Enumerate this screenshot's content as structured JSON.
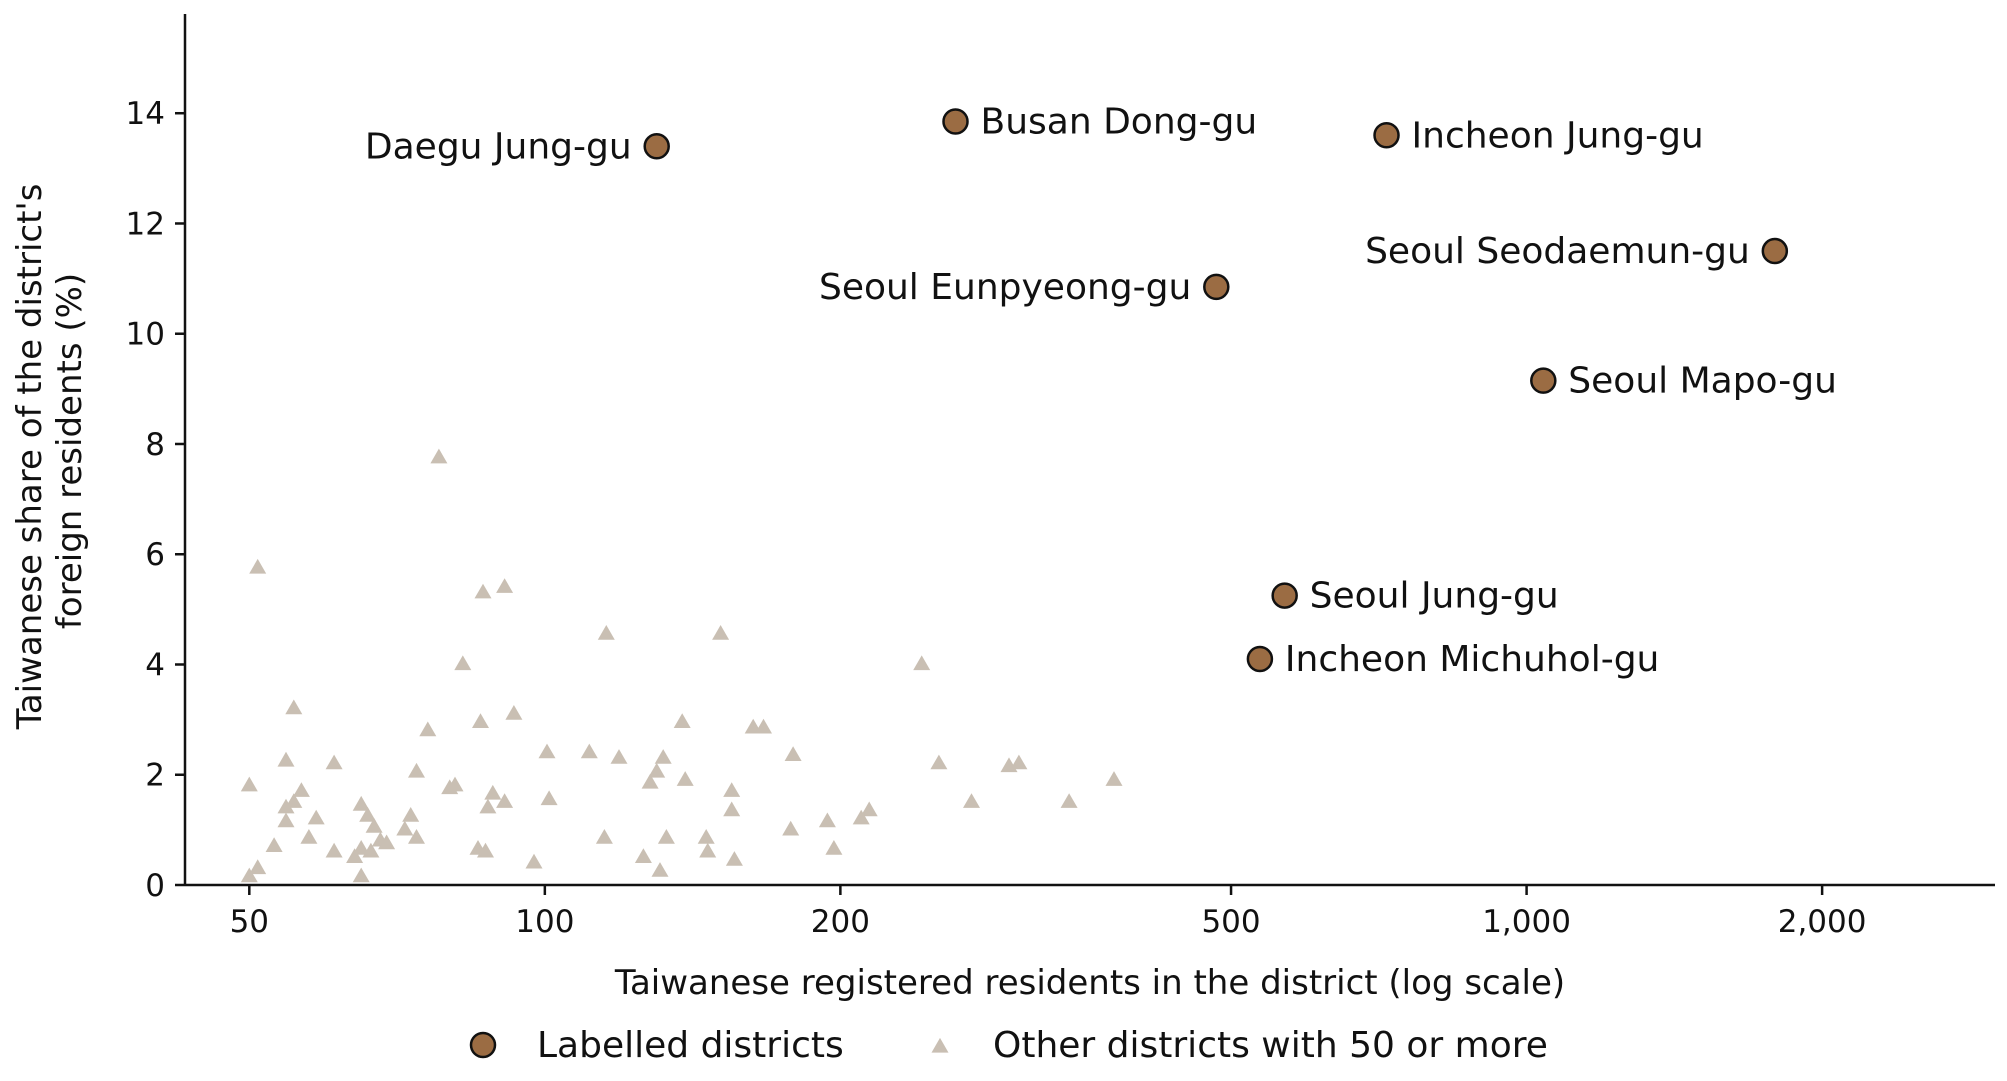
{
  "colors": {
    "labelled": "#9b6c43",
    "labelled_stroke": "#111111",
    "other": "#c9bfb3",
    "axis": "#111111"
  },
  "chart_data": {
    "type": "scatter",
    "title": "",
    "xlabel": "Taiwanese registered residents in the district (log scale)",
    "ylabel": "Taiwanese share of the district's foreign residents (%)",
    "ylabel_lines": [
      "Taiwanese share of the district's",
      "foreign residents (%)"
    ],
    "x_scale": "log",
    "xlim": [
      43,
      3000
    ],
    "ylim": [
      0,
      15.8
    ],
    "x_ticks": [
      {
        "value": 50,
        "label": "50"
      },
      {
        "value": 100,
        "label": "100"
      },
      {
        "value": 200,
        "label": "200"
      },
      {
        "value": 500,
        "label": "500"
      },
      {
        "value": 1000,
        "label": "1,000"
      },
      {
        "value": 2000,
        "label": "2,000"
      }
    ],
    "y_ticks": [
      {
        "value": 0,
        "label": "0"
      },
      {
        "value": 2,
        "label": "2"
      },
      {
        "value": 4,
        "label": "4"
      },
      {
        "value": 6,
        "label": "6"
      },
      {
        "value": 8,
        "label": "8"
      },
      {
        "value": 10,
        "label": "10"
      },
      {
        "value": 12,
        "label": "12"
      },
      {
        "value": 14,
        "label": "14"
      }
    ],
    "grid": false,
    "legend_position": "bottom-center",
    "series": [
      {
        "name": "Labelled districts",
        "marker": "circle",
        "points": [
          {
            "x": 130,
            "y": 13.4,
            "label": "Daegu Jung-gu",
            "label_side": "left"
          },
          {
            "x": 262,
            "y": 13.85,
            "label": "Busan Dong-gu",
            "label_side": "right"
          },
          {
            "x": 720,
            "y": 13.6,
            "label": "Incheon Jung-gu",
            "label_side": "right"
          },
          {
            "x": 1790,
            "y": 11.5,
            "label": "Seoul Seodaemun-gu",
            "label_side": "left"
          },
          {
            "x": 483,
            "y": 10.85,
            "label": "Seoul Eunpyeong-gu",
            "label_side": "left"
          },
          {
            "x": 1040,
            "y": 9.15,
            "label": "Seoul Mapo-gu",
            "label_side": "right"
          },
          {
            "x": 567,
            "y": 5.25,
            "label": "Seoul Jung-gu",
            "label_side": "right"
          },
          {
            "x": 535,
            "y": 4.1,
            "label": "Incheon Michuhol-gu",
            "label_side": "right"
          }
        ]
      },
      {
        "name": "Other districts with 50 or more",
        "marker": "triangle",
        "points": [
          {
            "x": 50,
            "y": 1.8
          },
          {
            "x": 50,
            "y": 0.15
          },
          {
            "x": 51,
            "y": 0.3
          },
          {
            "x": 51,
            "y": 5.75
          },
          {
            "x": 53,
            "y": 0.7
          },
          {
            "x": 54.5,
            "y": 1.15
          },
          {
            "x": 54.5,
            "y": 1.4
          },
          {
            "x": 54.5,
            "y": 2.25
          },
          {
            "x": 55.5,
            "y": 3.2
          },
          {
            "x": 55.5,
            "y": 1.5
          },
          {
            "x": 56.5,
            "y": 1.7
          },
          {
            "x": 57.5,
            "y": 0.85
          },
          {
            "x": 58.5,
            "y": 1.2
          },
          {
            "x": 61,
            "y": 0.6
          },
          {
            "x": 61,
            "y": 2.2
          },
          {
            "x": 64,
            "y": 0.5
          },
          {
            "x": 65,
            "y": 1.45
          },
          {
            "x": 65,
            "y": 0.65
          },
          {
            "x": 65,
            "y": 0.15
          },
          {
            "x": 66,
            "y": 1.25
          },
          {
            "x": 66.5,
            "y": 0.6
          },
          {
            "x": 67,
            "y": 1.05
          },
          {
            "x": 68,
            "y": 0.8
          },
          {
            "x": 69,
            "y": 0.75
          },
          {
            "x": 72,
            "y": 1.0
          },
          {
            "x": 73,
            "y": 1.25
          },
          {
            "x": 74,
            "y": 0.85
          },
          {
            "x": 74,
            "y": 2.05
          },
          {
            "x": 76,
            "y": 2.8
          },
          {
            "x": 78,
            "y": 7.75
          },
          {
            "x": 80,
            "y": 1.75
          },
          {
            "x": 81,
            "y": 1.8
          },
          {
            "x": 82.5,
            "y": 4.0
          },
          {
            "x": 85.5,
            "y": 0.65
          },
          {
            "x": 86,
            "y": 2.95
          },
          {
            "x": 86.5,
            "y": 5.3
          },
          {
            "x": 87,
            "y": 0.6
          },
          {
            "x": 87.5,
            "y": 1.4
          },
          {
            "x": 88.5,
            "y": 1.65
          },
          {
            "x": 91,
            "y": 1.5
          },
          {
            "x": 91,
            "y": 5.4
          },
          {
            "x": 93,
            "y": 3.1
          },
          {
            "x": 97.5,
            "y": 0.4
          },
          {
            "x": 100.5,
            "y": 2.4
          },
          {
            "x": 101,
            "y": 1.55
          },
          {
            "x": 111,
            "y": 2.4
          },
          {
            "x": 115,
            "y": 0.85
          },
          {
            "x": 115.5,
            "y": 4.55
          },
          {
            "x": 119,
            "y": 2.3
          },
          {
            "x": 126,
            "y": 0.5
          },
          {
            "x": 128,
            "y": 1.85
          },
          {
            "x": 130,
            "y": 2.05
          },
          {
            "x": 131,
            "y": 0.25
          },
          {
            "x": 132,
            "y": 2.3
          },
          {
            "x": 133,
            "y": 0.85
          },
          {
            "x": 138,
            "y": 2.95
          },
          {
            "x": 139,
            "y": 1.9
          },
          {
            "x": 146,
            "y": 0.85
          },
          {
            "x": 146.5,
            "y": 0.6
          },
          {
            "x": 151,
            "y": 4.55
          },
          {
            "x": 155,
            "y": 1.35
          },
          {
            "x": 155,
            "y": 1.7
          },
          {
            "x": 156,
            "y": 0.45
          },
          {
            "x": 163,
            "y": 2.85
          },
          {
            "x": 167,
            "y": 2.85
          },
          {
            "x": 178,
            "y": 1.0
          },
          {
            "x": 179,
            "y": 2.35
          },
          {
            "x": 194,
            "y": 1.15
          },
          {
            "x": 197,
            "y": 0.65
          },
          {
            "x": 210,
            "y": 1.2
          },
          {
            "x": 214,
            "y": 1.35
          },
          {
            "x": 242,
            "y": 4.0
          },
          {
            "x": 252,
            "y": 2.2
          },
          {
            "x": 272,
            "y": 1.5
          },
          {
            "x": 297,
            "y": 2.15
          },
          {
            "x": 304,
            "y": 2.2
          },
          {
            "x": 342,
            "y": 1.5
          },
          {
            "x": 380,
            "y": 1.9
          }
        ]
      }
    ]
  }
}
